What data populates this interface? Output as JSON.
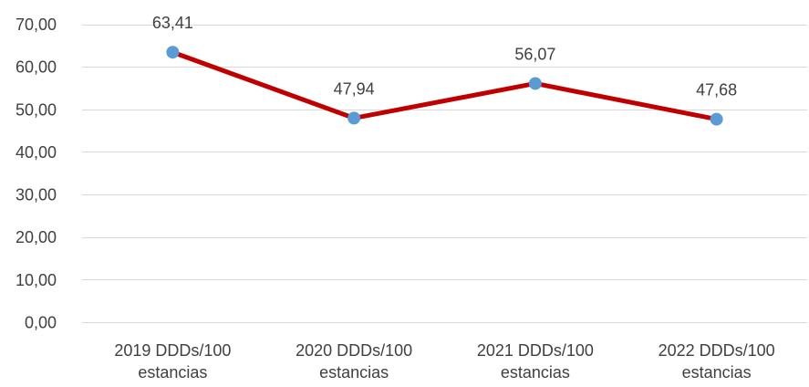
{
  "chart_data": {
    "type": "line",
    "categories": [
      [
        "2019 DDDs/100",
        "estancias"
      ],
      [
        "2020 DDDs/100",
        "estancias"
      ],
      [
        "2021 DDDs/100",
        "estancias"
      ],
      [
        "2022 DDDs/100",
        "estancias"
      ]
    ],
    "series": [
      {
        "values": [
          63.41,
          47.94,
          56.07,
          47.68
        ],
        "data_labels": [
          "63,41",
          "47,94",
          "56,07",
          "47,68"
        ]
      }
    ],
    "y_ticks": [
      0,
      10,
      20,
      30,
      40,
      50,
      60,
      70
    ],
    "y_tick_labels": [
      "0,00",
      "10,00",
      "20,00",
      "30,00",
      "40,00",
      "50,00",
      "60,00",
      "70,00"
    ],
    "ylim": [
      0,
      70
    ],
    "grid": true,
    "legend": "none",
    "colors": {
      "line": "#c00000",
      "marker": "#5b9bd5",
      "grid": "#d9d9d9",
      "text": "#404040"
    }
  }
}
